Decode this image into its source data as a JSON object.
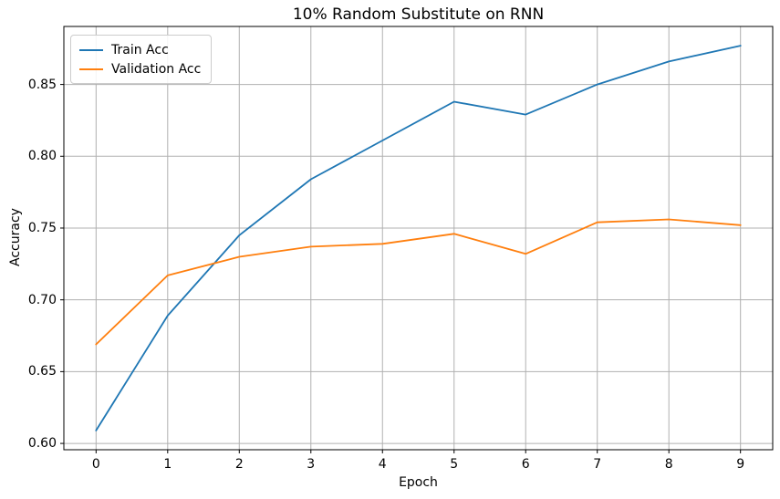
{
  "chart_data": {
    "type": "line",
    "title": "10% Random Substitute on RNN",
    "xlabel": "Epoch",
    "ylabel": "Accuracy",
    "x": [
      0,
      1,
      2,
      3,
      4,
      5,
      6,
      7,
      8,
      9
    ],
    "series": [
      {
        "name": "Train Acc",
        "color": "#1f77b4",
        "values": [
          0.609,
          0.689,
          0.745,
          0.784,
          0.811,
          0.838,
          0.829,
          0.85,
          0.866,
          0.877
        ]
      },
      {
        "name": "Validation Acc",
        "color": "#ff7f0e",
        "values": [
          0.669,
          0.717,
          0.73,
          0.737,
          0.739,
          0.746,
          0.732,
          0.754,
          0.756,
          0.752
        ]
      }
    ],
    "xlim": [
      -0.45,
      9.45
    ],
    "ylim": [
      0.5956,
      0.8904
    ],
    "xticks": [
      0,
      1,
      2,
      3,
      4,
      5,
      6,
      7,
      8,
      9
    ],
    "xtick_labels": [
      "0",
      "1",
      "2",
      "3",
      "4",
      "5",
      "6",
      "7",
      "8",
      "9"
    ],
    "yticks": [
      0.6,
      0.65,
      0.7,
      0.75,
      0.8,
      0.85
    ],
    "ytick_labels": [
      "0.60",
      "0.65",
      "0.70",
      "0.75",
      "0.80",
      "0.85"
    ],
    "grid": true,
    "legend_position": "upper left"
  },
  "colors": {
    "grid": "#b0b0b0",
    "spine": "#000000",
    "background": "#ffffff"
  }
}
